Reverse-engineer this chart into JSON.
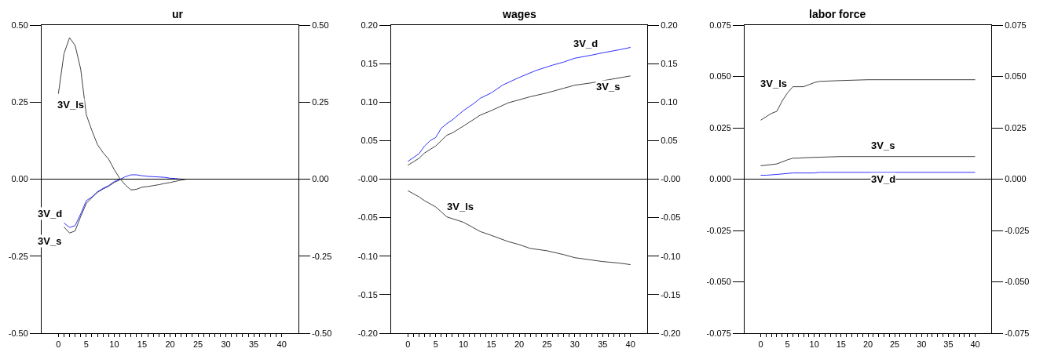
{
  "chart_data": [
    {
      "type": "line",
      "title": "ur",
      "xlim": [
        -3,
        43
      ],
      "xticks": [
        0,
        {
          "value": 1,
          "label": null
        },
        {
          "value": 2,
          "label": null
        },
        {
          "value": 3,
          "label": null
        },
        {
          "value": 4,
          "label": null
        },
        5,
        {
          "value": 6,
          "label": null
        },
        {
          "value": 7,
          "label": null
        },
        {
          "value": 8,
          "label": null
        },
        {
          "value": 9,
          "label": null
        },
        10,
        {
          "value": 11,
          "label": null
        },
        {
          "value": 12,
          "label": null
        },
        {
          "value": 13,
          "label": null
        },
        {
          "value": 14,
          "label": null
        },
        15,
        {
          "value": 16,
          "label": null
        },
        {
          "value": 17,
          "label": null
        },
        {
          "value": 18,
          "label": null
        },
        {
          "value": 19,
          "label": null
        },
        20,
        {
          "value": 21,
          "label": null
        },
        {
          "value": 22,
          "label": null
        },
        {
          "value": 23,
          "label": null
        },
        {
          "value": 24,
          "label": null
        },
        25,
        {
          "value": 26,
          "label": null
        },
        {
          "value": 27,
          "label": null
        },
        {
          "value": 28,
          "label": null
        },
        {
          "value": 29,
          "label": null
        },
        30,
        {
          "value": 31,
          "label": null
        },
        {
          "value": 32,
          "label": null
        },
        {
          "value": 33,
          "label": null
        },
        {
          "value": 34,
          "label": null
        },
        35,
        {
          "value": 36,
          "label": null
        },
        {
          "value": 37,
          "label": null
        },
        {
          "value": 38,
          "label": null
        },
        {
          "value": 39,
          "label": null
        },
        40
      ],
      "ylim": [
        -0.5,
        0.5
      ],
      "yticks": [
        {
          "value": -0.5,
          "label": "-0.50"
        },
        {
          "value": -0.25,
          "label": "-0.25"
        },
        {
          "value": 0,
          "label": "0.00"
        },
        {
          "value": 0.25,
          "label": "0.25"
        },
        {
          "value": 0.5,
          "label": "0.50"
        }
      ],
      "y2lim": [
        -0.5,
        0.5
      ],
      "y2ticks": [
        {
          "value": -0.5,
          "label": "-0.50"
        },
        {
          "value": -0.25,
          "label": "-0.25"
        },
        {
          "value": 0,
          "label": "0.00"
        },
        {
          "value": 0.25,
          "label": "0.25"
        },
        {
          "value": 0.5,
          "label": "0.50"
        }
      ],
      "ref_lines": [
        {
          "axis": "y",
          "value": 0,
          "color": "#000000"
        }
      ],
      "series": [
        {
          "name": "3V_ls",
          "color": "#404040",
          "x": [
            0,
            1,
            2,
            3,
            4,
            5,
            6,
            7,
            8,
            9,
            10,
            11,
            12,
            13,
            14,
            15,
            16,
            17,
            18,
            19,
            20,
            21,
            22,
            23,
            40
          ],
          "values": [
            0.277,
            0.407,
            0.459,
            0.434,
            0.357,
            0.209,
            0.158,
            0.112,
            0.086,
            0.065,
            0.031,
            0.002,
            -0.019,
            -0.035,
            -0.033,
            -0.026,
            -0.024,
            -0.021,
            -0.018,
            -0.014,
            -0.011,
            -0.007,
            -0.003,
            0,
            0
          ]
        },
        {
          "name": "3V_s",
          "color": "#404040",
          "x": [
            1,
            2,
            3,
            4,
            5,
            6,
            7,
            8,
            9,
            10,
            11
          ],
          "values": [
            -0.155,
            -0.175,
            -0.168,
            -0.121,
            -0.079,
            -0.06,
            -0.043,
            -0.032,
            -0.023,
            -0.011,
            -0.002
          ]
        },
        {
          "name": "3V_d",
          "color": "#3030ff",
          "x": [
            1,
            2,
            3,
            4,
            5,
            6,
            7,
            8,
            9,
            10,
            11,
            12,
            13,
            14,
            15,
            16,
            17,
            18,
            19,
            20,
            21,
            22,
            40
          ],
          "values": [
            -0.142,
            -0.157,
            -0.151,
            -0.113,
            -0.07,
            -0.058,
            -0.041,
            -0.03,
            -0.021,
            -0.008,
            -0.001,
            0.008,
            0.014,
            0.014,
            0.011,
            0.009,
            0.008,
            0.007,
            0.006,
            0.003,
            0.002,
            0,
            0
          ]
        }
      ]
    },
    {
      "type": "line",
      "title": "wages",
      "xlim": [
        -3,
        43
      ],
      "xticks": [
        0,
        {
          "value": 1,
          "label": null
        },
        {
          "value": 2,
          "label": null
        },
        {
          "value": 3,
          "label": null
        },
        {
          "value": 4,
          "label": null
        },
        5,
        {
          "value": 6,
          "label": null
        },
        {
          "value": 7,
          "label": null
        },
        {
          "value": 8,
          "label": null
        },
        {
          "value": 9,
          "label": null
        },
        10,
        {
          "value": 11,
          "label": null
        },
        {
          "value": 12,
          "label": null
        },
        {
          "value": 13,
          "label": null
        },
        {
          "value": 14,
          "label": null
        },
        15,
        {
          "value": 16,
          "label": null
        },
        {
          "value": 17,
          "label": null
        },
        {
          "value": 18,
          "label": null
        },
        {
          "value": 19,
          "label": null
        },
        20,
        {
          "value": 21,
          "label": null
        },
        {
          "value": 22,
          "label": null
        },
        {
          "value": 23,
          "label": null
        },
        {
          "value": 24,
          "label": null
        },
        25,
        {
          "value": 26,
          "label": null
        },
        {
          "value": 27,
          "label": null
        },
        {
          "value": 28,
          "label": null
        },
        {
          "value": 29,
          "label": null
        },
        30,
        {
          "value": 31,
          "label": null
        },
        {
          "value": 32,
          "label": null
        },
        {
          "value": 33,
          "label": null
        },
        {
          "value": 34,
          "label": null
        },
        35,
        {
          "value": 36,
          "label": null
        },
        {
          "value": 37,
          "label": null
        },
        {
          "value": 38,
          "label": null
        },
        {
          "value": 39,
          "label": null
        },
        40
      ],
      "ylim": [
        -0.2,
        0.2
      ],
      "yticks": [
        {
          "value": -0.2,
          "label": "-0.20"
        },
        {
          "value": -0.15,
          "label": "-0.15"
        },
        {
          "value": -0.1,
          "label": "-0.10"
        },
        {
          "value": -0.05,
          "label": "-0.05"
        },
        {
          "value": 0,
          "label": "-0.00"
        },
        {
          "value": 0.05,
          "label": "0.05"
        },
        {
          "value": 0.1,
          "label": "0.10"
        },
        {
          "value": 0.15,
          "label": "0.15"
        },
        {
          "value": 0.2,
          "label": "0.20"
        }
      ],
      "y2lim": [
        -0.2,
        0.2
      ],
      "y2ticks": [
        {
          "value": -0.2,
          "label": "-0.20"
        },
        {
          "value": -0.15,
          "label": "-0.15"
        },
        {
          "value": -0.1,
          "label": "-0.10"
        },
        {
          "value": -0.05,
          "label": "-0.05"
        },
        {
          "value": 0,
          "label": "-0.00"
        },
        {
          "value": 0.05,
          "label": "0.05"
        },
        {
          "value": 0.1,
          "label": "0.10"
        },
        {
          "value": 0.15,
          "label": "0.15"
        },
        {
          "value": 0.2,
          "label": "0.20"
        }
      ],
      "ref_lines": [
        {
          "axis": "y",
          "value": 0,
          "color": "#000000"
        }
      ],
      "series": [
        {
          "name": "3V_d",
          "color": "#3030ff",
          "x": [
            0,
            2,
            3,
            4,
            5,
            6,
            7,
            8,
            10,
            12,
            13,
            15,
            17,
            20,
            23,
            26,
            28,
            30,
            33,
            35,
            38,
            40
          ],
          "values": [
            0.023,
            0.033,
            0.043,
            0.05,
            0.054,
            0.066,
            0.072,
            0.077,
            0.089,
            0.099,
            0.105,
            0.112,
            0.122,
            0.132,
            0.141,
            0.148,
            0.152,
            0.157,
            0.161,
            0.164,
            0.168,
            0.171
          ]
        },
        {
          "name": "3V_s",
          "color": "#404040",
          "x": [
            0,
            2,
            3,
            5,
            7,
            8,
            10,
            13,
            15,
            18,
            20,
            22,
            25,
            28,
            30,
            33,
            36,
            40
          ],
          "values": [
            0.018,
            0.027,
            0.034,
            0.043,
            0.057,
            0.06,
            0.069,
            0.083,
            0.089,
            0.099,
            0.103,
            0.107,
            0.112,
            0.118,
            0.122,
            0.125,
            0.129,
            0.134
          ]
        },
        {
          "name": "3V_ls",
          "color": "#404040",
          "x": [
            0,
            2,
            3,
            5,
            7,
            10,
            13,
            15,
            18,
            20,
            22,
            25,
            28,
            30,
            33,
            35,
            38,
            40
          ],
          "values": [
            -0.015,
            -0.023,
            -0.028,
            -0.036,
            -0.049,
            -0.056,
            -0.068,
            -0.073,
            -0.081,
            -0.085,
            -0.09,
            -0.093,
            -0.098,
            -0.102,
            -0.105,
            -0.107,
            -0.109,
            -0.111
          ]
        }
      ]
    },
    {
      "type": "line",
      "title": "labor force",
      "xlim": [
        -3,
        43
      ],
      "xticks": [
        0,
        {
          "value": 1,
          "label": null
        },
        {
          "value": 2,
          "label": null
        },
        {
          "value": 3,
          "label": null
        },
        {
          "value": 4,
          "label": null
        },
        5,
        {
          "value": 6,
          "label": null
        },
        {
          "value": 7,
          "label": null
        },
        {
          "value": 8,
          "label": null
        },
        {
          "value": 9,
          "label": null
        },
        10,
        {
          "value": 11,
          "label": null
        },
        {
          "value": 12,
          "label": null
        },
        {
          "value": 13,
          "label": null
        },
        {
          "value": 14,
          "label": null
        },
        15,
        {
          "value": 16,
          "label": null
        },
        {
          "value": 17,
          "label": null
        },
        {
          "value": 18,
          "label": null
        },
        {
          "value": 19,
          "label": null
        },
        20,
        {
          "value": 21,
          "label": null
        },
        {
          "value": 22,
          "label": null
        },
        {
          "value": 23,
          "label": null
        },
        {
          "value": 24,
          "label": null
        },
        25,
        {
          "value": 26,
          "label": null
        },
        {
          "value": 27,
          "label": null
        },
        {
          "value": 28,
          "label": null
        },
        {
          "value": 29,
          "label": null
        },
        30,
        {
          "value": 31,
          "label": null
        },
        {
          "value": 32,
          "label": null
        },
        {
          "value": 33,
          "label": null
        },
        {
          "value": 34,
          "label": null
        },
        35,
        {
          "value": 36,
          "label": null
        },
        {
          "value": 37,
          "label": null
        },
        {
          "value": 38,
          "label": null
        },
        {
          "value": 39,
          "label": null
        },
        40
      ],
      "ylim": [
        -0.075,
        0.075
      ],
      "yticks": [
        {
          "value": -0.075,
          "label": "-0.075"
        },
        {
          "value": -0.05,
          "label": "-0.050"
        },
        {
          "value": -0.025,
          "label": "-0.025"
        },
        {
          "value": 0,
          "label": "0.000"
        },
        {
          "value": 0.025,
          "label": "0.025"
        },
        {
          "value": 0.05,
          "label": "0.050"
        },
        {
          "value": 0.075,
          "label": "0.075"
        }
      ],
      "y2lim": [
        -0.075,
        0.075
      ],
      "y2ticks": [
        {
          "value": -0.075,
          "label": "-0.075"
        },
        {
          "value": -0.05,
          "label": "-0.050"
        },
        {
          "value": -0.025,
          "label": "-0.025"
        },
        {
          "value": 0,
          "label": "0.000"
        },
        {
          "value": 0.025,
          "label": "0.025"
        },
        {
          "value": 0.05,
          "label": "0.050"
        },
        {
          "value": 0.075,
          "label": "0.075"
        }
      ],
      "ref_lines": [
        {
          "axis": "y",
          "value": 0,
          "color": "#000000"
        }
      ],
      "series": [
        {
          "name": "3V_ls",
          "color": "#404040",
          "x": [
            0,
            2,
            3,
            4,
            5,
            6,
            8,
            10,
            11,
            15,
            20,
            40
          ],
          "values": [
            0.0287,
            0.032,
            0.033,
            0.038,
            0.042,
            0.045,
            0.045,
            0.047,
            0.0476,
            0.048,
            0.0484,
            0.0484
          ]
        },
        {
          "name": "3V_s",
          "color": "#404040",
          "x": [
            0,
            3,
            5,
            6,
            7,
            8,
            10,
            15,
            20,
            40
          ],
          "values": [
            0.0065,
            0.0074,
            0.0094,
            0.0102,
            0.0102,
            0.0104,
            0.0106,
            0.011,
            0.011,
            0.011
          ]
        },
        {
          "name": "3V_d",
          "color": "#3030ff",
          "x": [
            0,
            1,
            3,
            6,
            10,
            11,
            20,
            40
          ],
          "values": [
            0.0019,
            0.0019,
            0.0023,
            0.003,
            0.003,
            0.0033,
            0.0033,
            0.0033
          ]
        }
      ]
    }
  ]
}
